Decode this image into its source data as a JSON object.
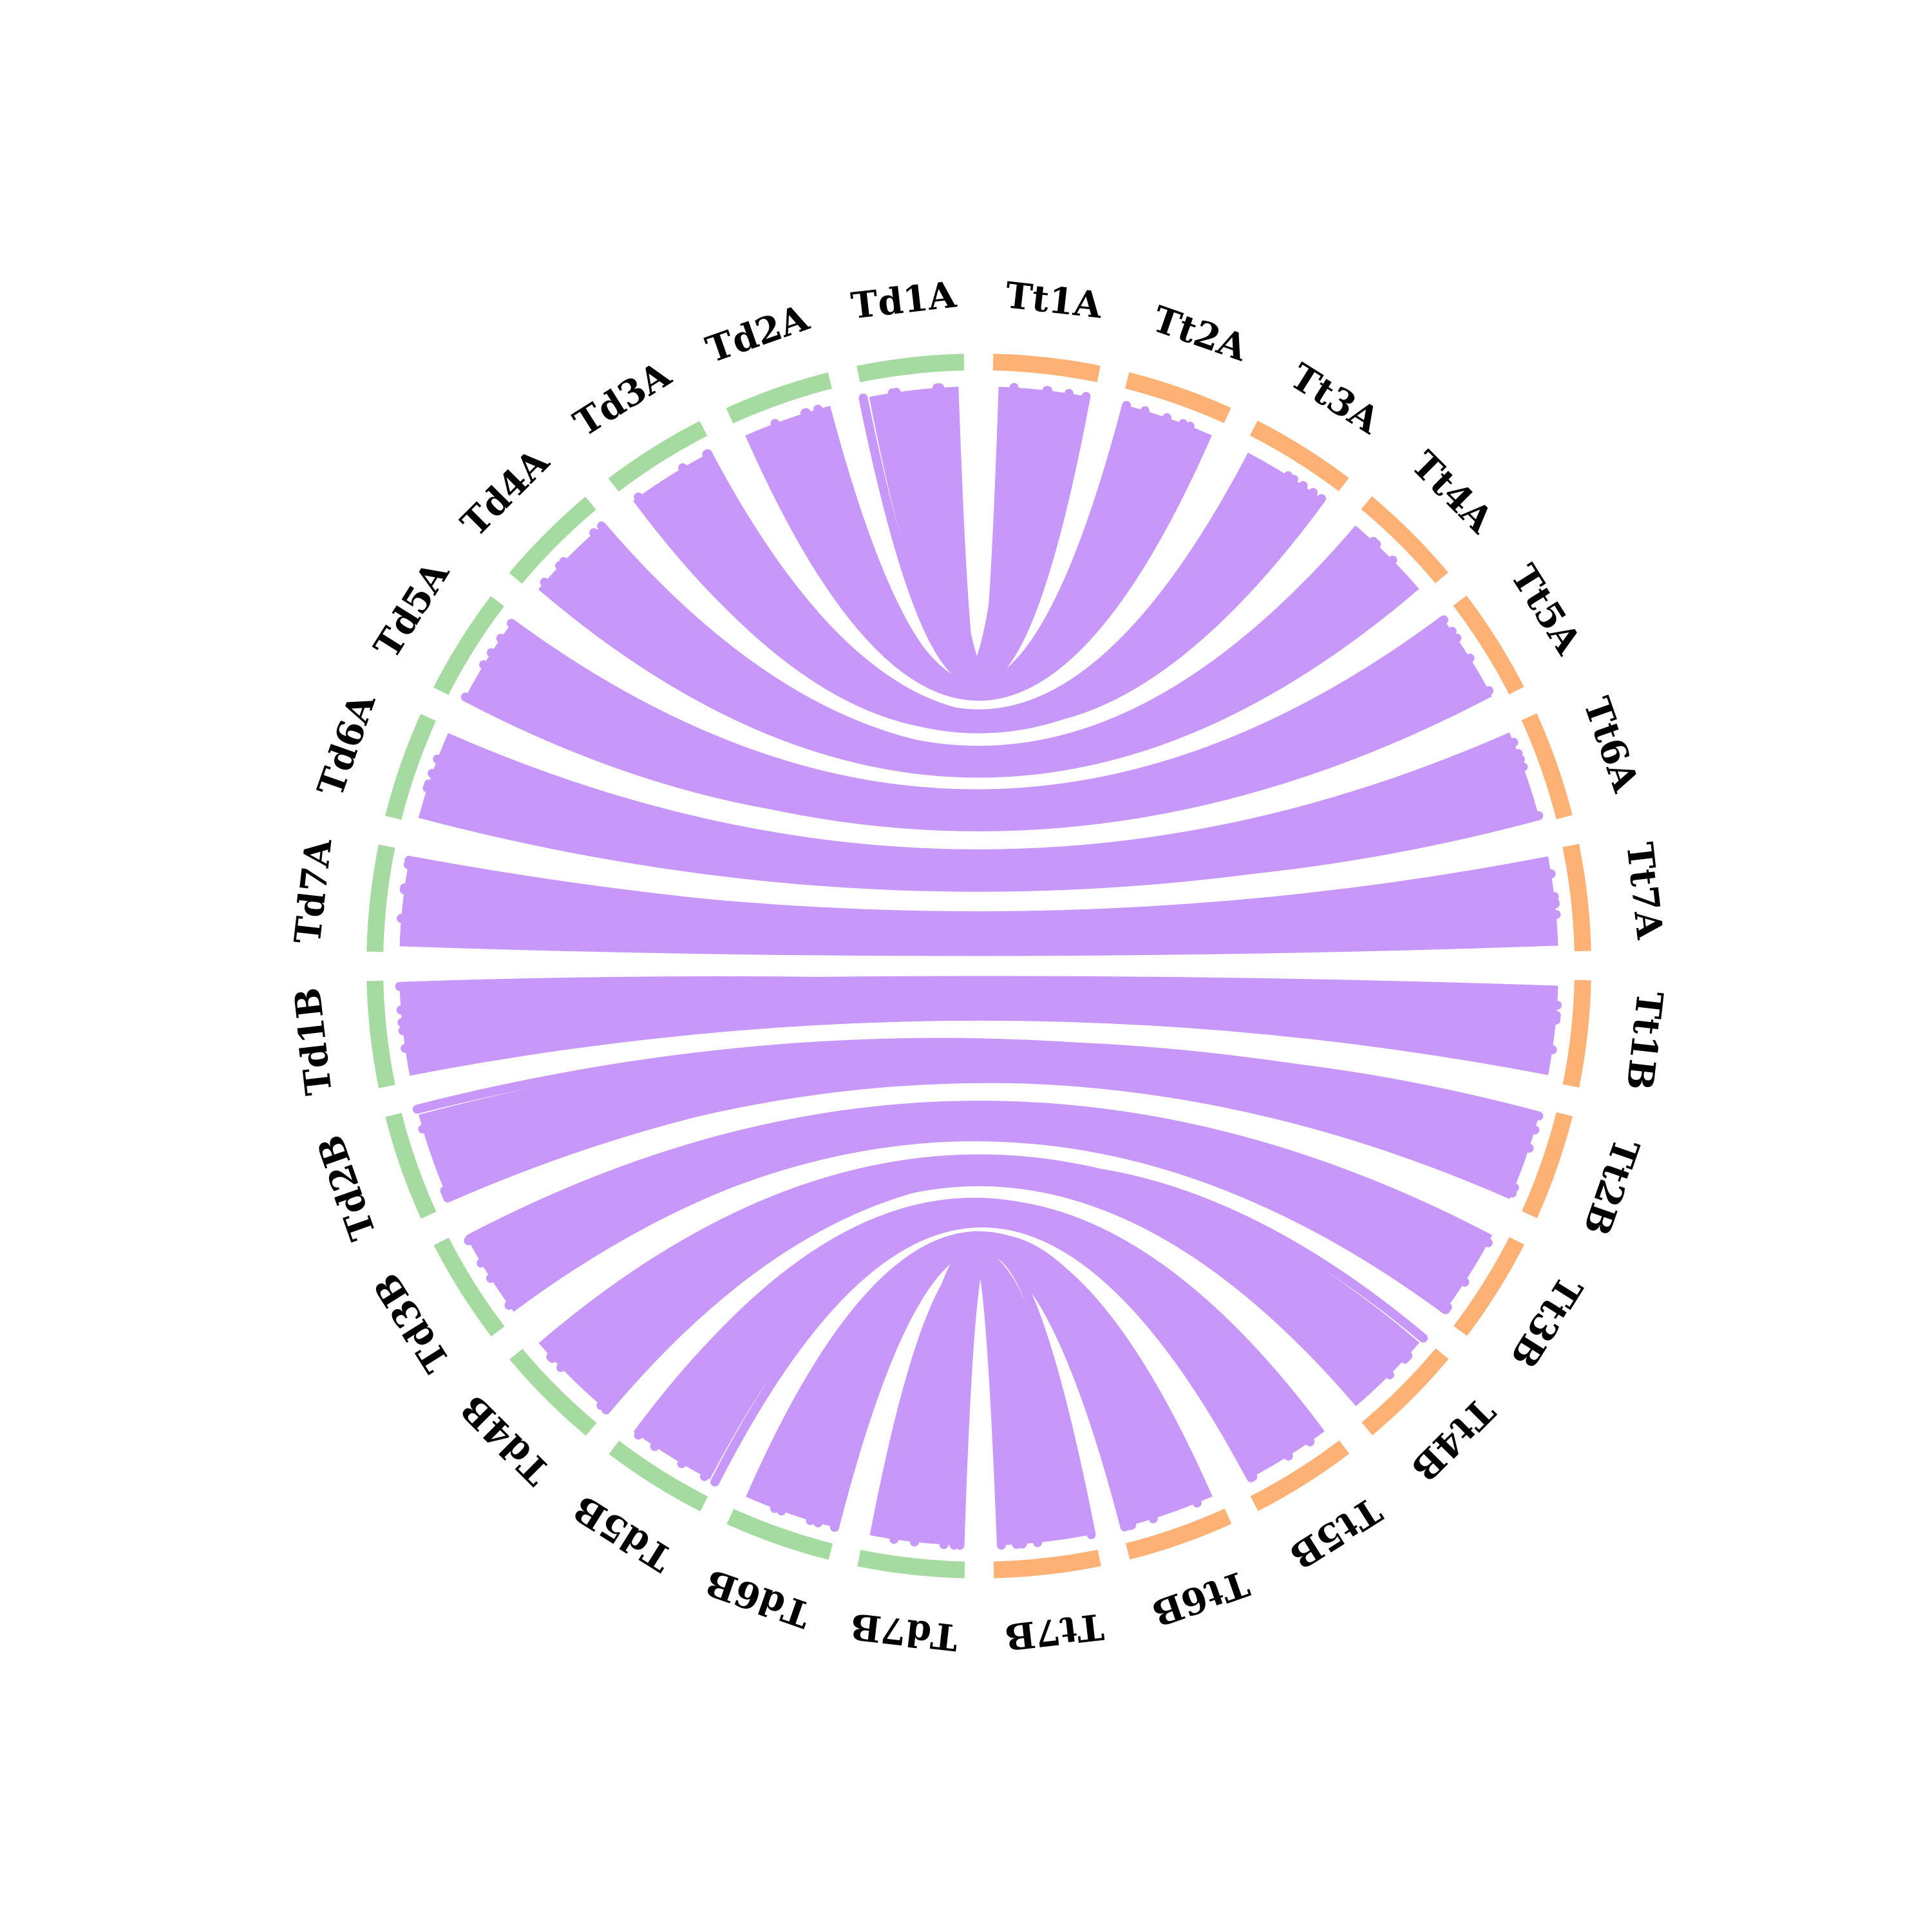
{
  "diagram": {
    "type": "circos",
    "ribbon_color": "#c897fa",
    "groups": [
      {
        "color": "#a5dba0",
        "chromosomes": [
          "Td1A",
          "Td2A",
          "Td3A",
          "Td4A",
          "Td5A",
          "Td6A",
          "Td7A",
          "Td1B",
          "Td2B",
          "Td3B",
          "Td4B",
          "Td5B",
          "Td6B",
          "Td7B"
        ]
      },
      {
        "color": "#fdb175",
        "chromosomes": [
          "Tt1A",
          "Tt2A",
          "Tt3A",
          "Tt4A",
          "Tt5A",
          "Tt6A",
          "Tt7A",
          "Tt1B",
          "Tt2B",
          "Tt3B",
          "Tt4B",
          "Tt5B",
          "Tt6B",
          "Tt7B"
        ]
      }
    ],
    "links": [
      [
        "Td1A",
        "Tt1A"
      ],
      [
        "Td2A",
        "Tt2A"
      ],
      [
        "Td3A",
        "Tt3A"
      ],
      [
        "Td4A",
        "Tt4A"
      ],
      [
        "Td5A",
        "Tt5A"
      ],
      [
        "Td6A",
        "Tt6A"
      ],
      [
        "Td7A",
        "Tt7A"
      ],
      [
        "Td1B",
        "Tt1B"
      ],
      [
        "Td2B",
        "Tt2B"
      ],
      [
        "Td3B",
        "Tt3B"
      ],
      [
        "Td4B",
        "Tt4B"
      ],
      [
        "Td5B",
        "Tt5B"
      ],
      [
        "Td6B",
        "Tt6B"
      ],
      [
        "Td7B",
        "Tt7B"
      ]
    ]
  }
}
